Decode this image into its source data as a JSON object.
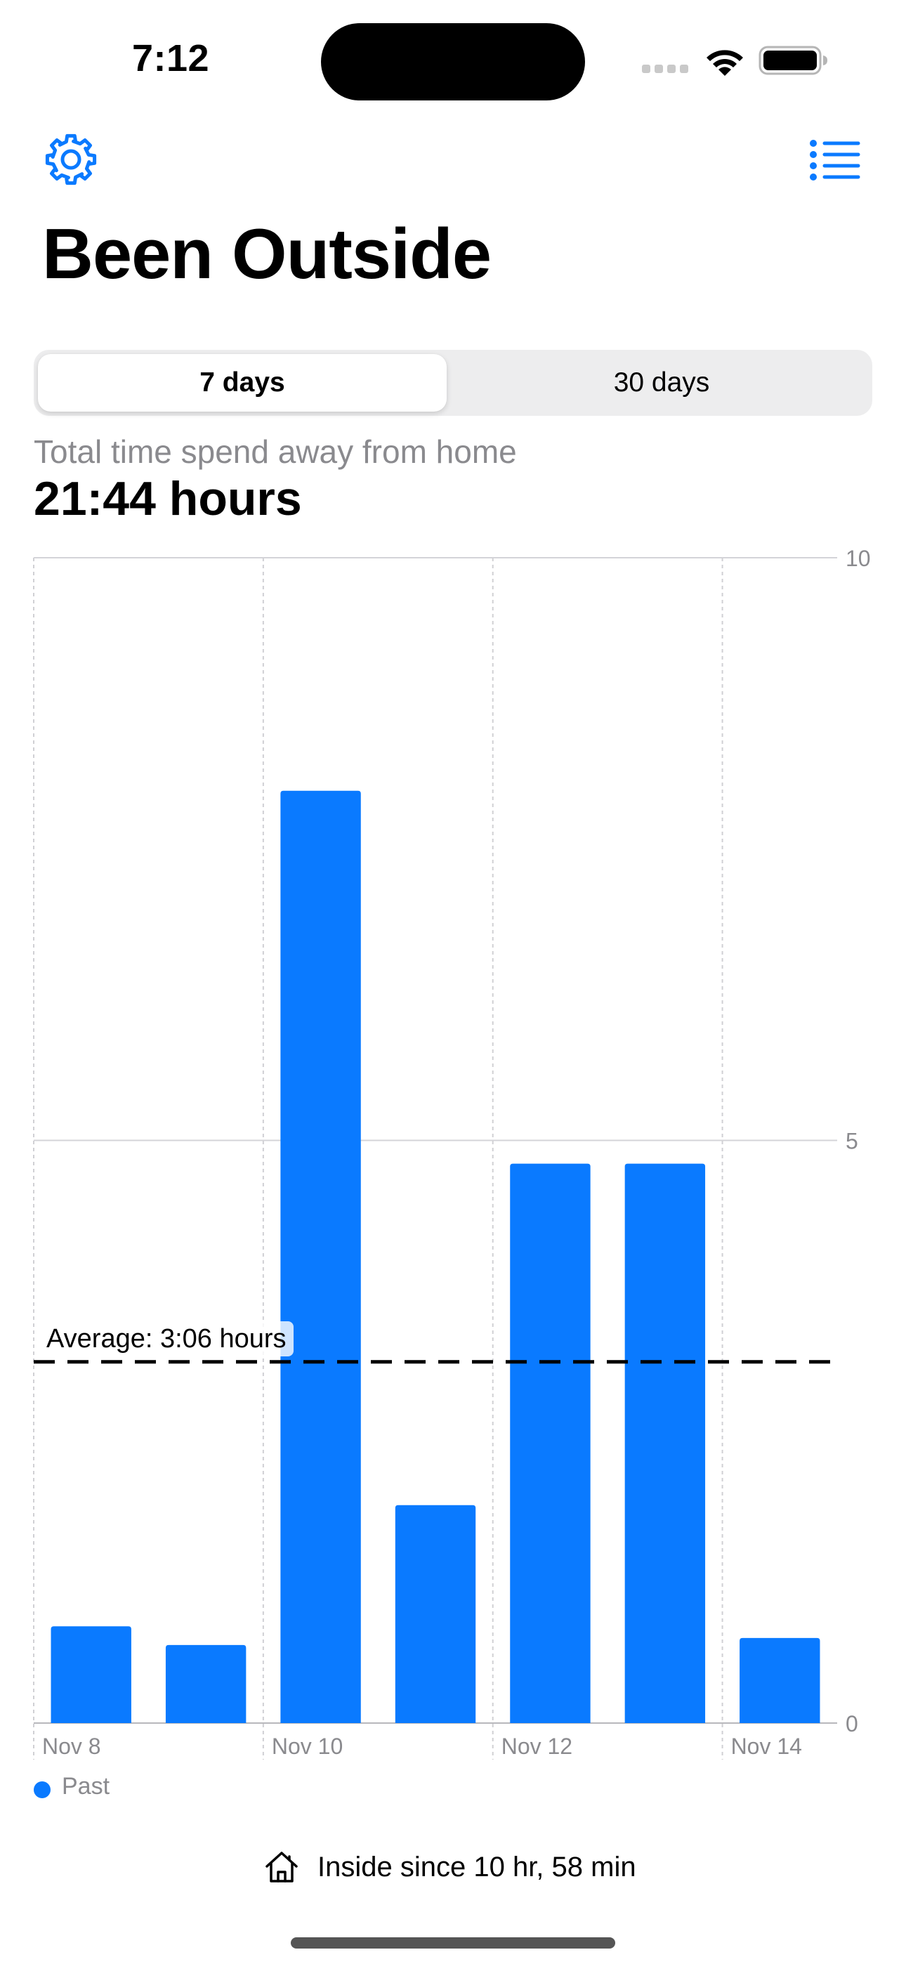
{
  "status_bar": {
    "time": "7:12"
  },
  "nav": {
    "settings_icon": "gear-icon",
    "list_icon": "list-bullet-icon"
  },
  "page": {
    "title": "Been Outside"
  },
  "segmented": {
    "options": [
      "7 days",
      "30 days"
    ],
    "selected": "7 days"
  },
  "summary": {
    "subtitle": "Total time spend away from home",
    "total": "21:44 hours"
  },
  "chart_data": {
    "type": "bar",
    "categories": [
      "Nov 8",
      "Nov 9",
      "Nov 10",
      "Nov 11",
      "Nov 12",
      "Nov 13",
      "Nov 14"
    ],
    "series": [
      {
        "name": "Past",
        "values": [
          0.83,
          0.67,
          8.0,
          1.87,
          4.8,
          4.8,
          0.73
        ]
      }
    ],
    "x_tick_labels": [
      "Nov 8",
      "Nov 10",
      "Nov 12",
      "Nov 14"
    ],
    "y_ticks": [
      0,
      5,
      10
    ],
    "ylim": [
      0,
      10
    ],
    "average": 3.1,
    "average_label": "Average: 3:06 hours",
    "bar_color": "#0a7aff",
    "grid": true,
    "legend_position": "bottom-left"
  },
  "legend": {
    "label": "Past",
    "color": "#0a7aff"
  },
  "footer": {
    "icon": "house-icon",
    "text": "Inside since 10 hr, 58 min"
  }
}
